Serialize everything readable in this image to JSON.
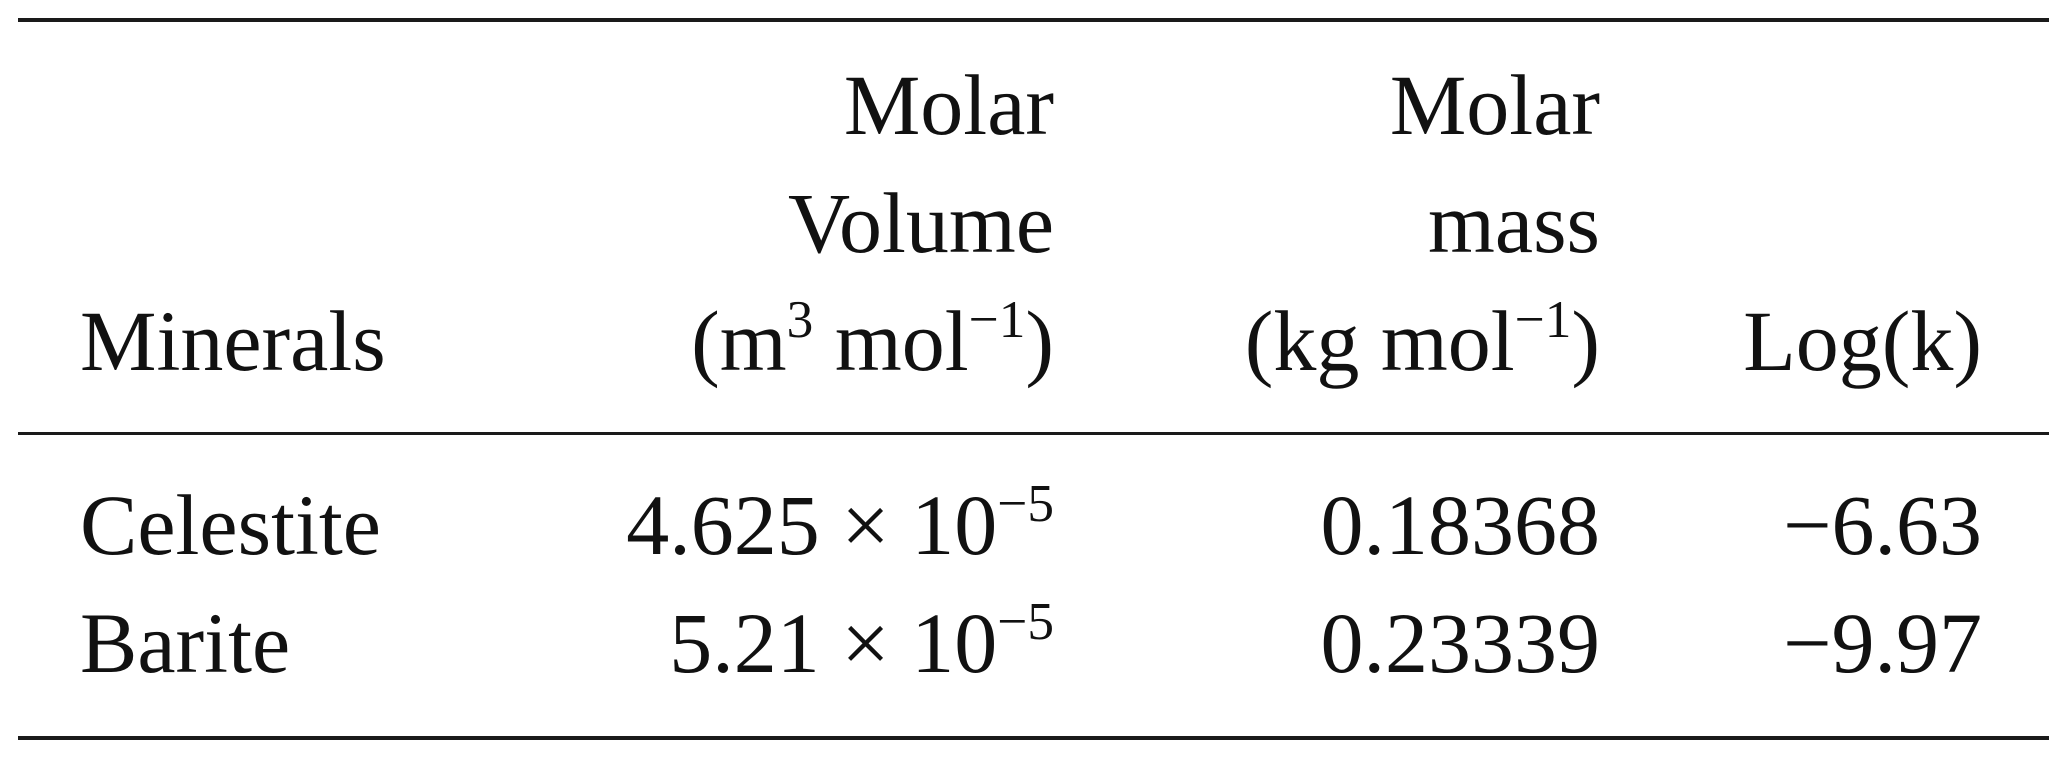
{
  "table": {
    "headers": {
      "minerals": "Minerals",
      "molar_volume": {
        "line1": "Molar",
        "line2": "Volume",
        "unit_open": "(m",
        "unit_exp1": "3",
        "unit_mid": " mol",
        "unit_exp2": "−1",
        "unit_close": ")"
      },
      "molar_mass": {
        "line1": "Molar",
        "line2": "mass",
        "unit_open": "(kg mol",
        "unit_exp": "−1",
        "unit_close": ")"
      },
      "logk": "Log(k)"
    },
    "rows": [
      {
        "mineral": "Celestite",
        "molar_volume_mantissa": "4.625 × 10",
        "molar_volume_exponent": "−5",
        "molar_mass": "0.18368",
        "logk": "−6.63"
      },
      {
        "mineral": "Barite",
        "molar_volume_mantissa": "5.21 × 10",
        "molar_volume_exponent": "−5",
        "molar_mass": "0.23339",
        "logk": "−9.97"
      }
    ]
  }
}
